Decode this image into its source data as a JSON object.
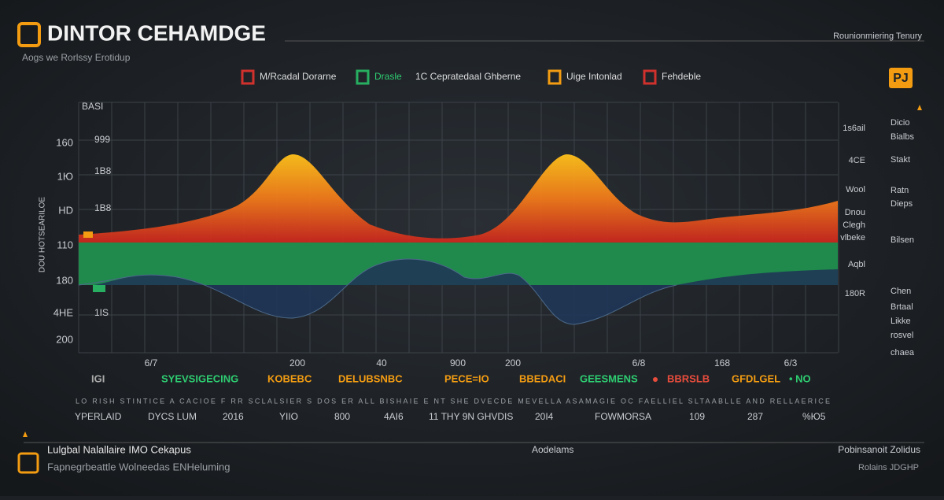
{
  "header": {
    "title": "DINTOR CEHAMDGE",
    "subtitle": "Aogs we Rorlssy Erotidup",
    "right": "Rounionmiering Tenury",
    "badge": "PJ"
  },
  "legend": [
    "M/Rcadal Dorarne",
    "Drasle",
    "1C Cepratedaal Ghberne",
    "Uige Intonlad",
    "Fehdeble"
  ],
  "axis": {
    "vertical_label": "DOU HOTSEARILOE",
    "left_outer": [
      "160",
      "1Ю",
      "HD",
      "110",
      "180",
      "4HE",
      "200"
    ],
    "left_inner": [
      "BASI",
      "999",
      "1B8",
      "1B8",
      "1IS"
    ],
    "right_inner": [
      "1s6ail",
      "4CE",
      "Wool",
      "Dnou",
      "Clegh",
      "vlbeke",
      "Aqbl",
      "180R"
    ],
    "right_outer": [
      "Dicio",
      "Bialbs",
      "Stakt",
      "Ratn",
      "Dieps",
      "Bilsen",
      "Chen",
      "Brtaal",
      "Likke",
      "rosvel",
      "chaea"
    ],
    "bottom": [
      "6/7",
      "200",
      "40",
      "900",
      "200",
      "6/8",
      "168",
      "6/3"
    ]
  },
  "rows": {
    "tags": [
      "IGI",
      "SYEVSIGECING",
      "KOBEBC",
      "DELUBSNBC",
      "PECE=IO",
      "BBEDACI",
      "GEESMENS",
      "BBRSLB",
      "GFDLGEL",
      "• NO"
    ],
    "note": "LO RISH STINTICE A CACIOE F RR SCLALSIER S DOS ER ALL BISHAIE E NT SHE DVECDE MEVELLA ASAMAGIE OC FAELLIEL SLTAABLLE AND RELLAERICE",
    "values": [
      "YPERLAID",
      "DYCS LUM",
      "2016",
      "YIIO",
      "800",
      "4AI6",
      "11 THY 9N GHVDIS",
      "20I4",
      "FOWMORSA",
      "109",
      "287",
      "%Ю5"
    ]
  },
  "footer": {
    "left_title": "Lulgbal Nalallaire IMO Cekapus",
    "left_sub": "Fapnegrbeattle Wolneedas ENHeluming",
    "center": "Aodelams",
    "right_title": "Pobinsanoit Zolidus",
    "right_sub": "Rolains JDGHP"
  }
}
